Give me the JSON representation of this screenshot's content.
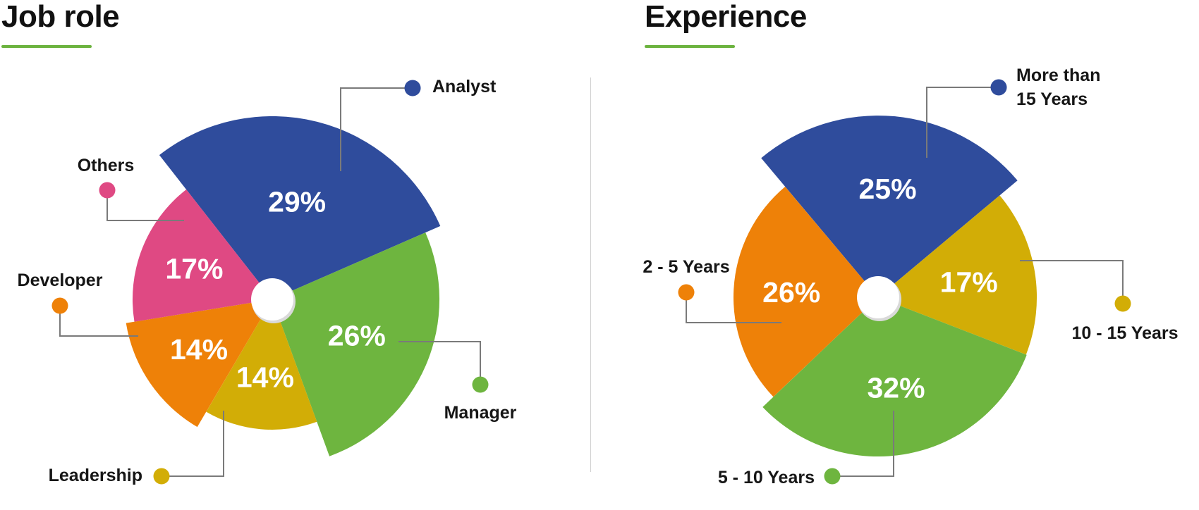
{
  "accent_color": "#6cb33f",
  "charts": [
    {
      "id": "job-role",
      "title": "Job role",
      "chart_data": {
        "type": "pie",
        "title": "Job role",
        "slices": [
          {
            "label": "Analyst",
            "value": 29,
            "value_label": "29%",
            "color": "#2f4c9c"
          },
          {
            "label": "Manager",
            "value": 26,
            "value_label": "26%",
            "color": "#6eb53f"
          },
          {
            "label": "Leadership",
            "value": 14,
            "value_label": "14%",
            "color": "#d2ad06"
          },
          {
            "label": "Developer",
            "value": 14,
            "value_label": "14%",
            "color": "#ee8108"
          },
          {
            "label": "Others",
            "value": 17,
            "value_label": "17%",
            "color": "#df4983"
          }
        ]
      }
    },
    {
      "id": "experience",
      "title": "Experience",
      "chart_data": {
        "type": "pie",
        "title": "Experience",
        "slices": [
          {
            "label": "More than 15 Years",
            "label_lines": [
              "More than",
              "15 Years"
            ],
            "value": 25,
            "value_label": "25%",
            "color": "#2f4c9c"
          },
          {
            "label": "10 - 15 Years",
            "value": 17,
            "value_label": "17%",
            "color": "#d2ad06"
          },
          {
            "label": "5 - 10 Years",
            "value": 32,
            "value_label": "32%",
            "color": "#6eb53f"
          },
          {
            "label": "2 - 5 Years",
            "value": 26,
            "value_label": "26%",
            "color": "#ee8108"
          }
        ]
      }
    }
  ]
}
